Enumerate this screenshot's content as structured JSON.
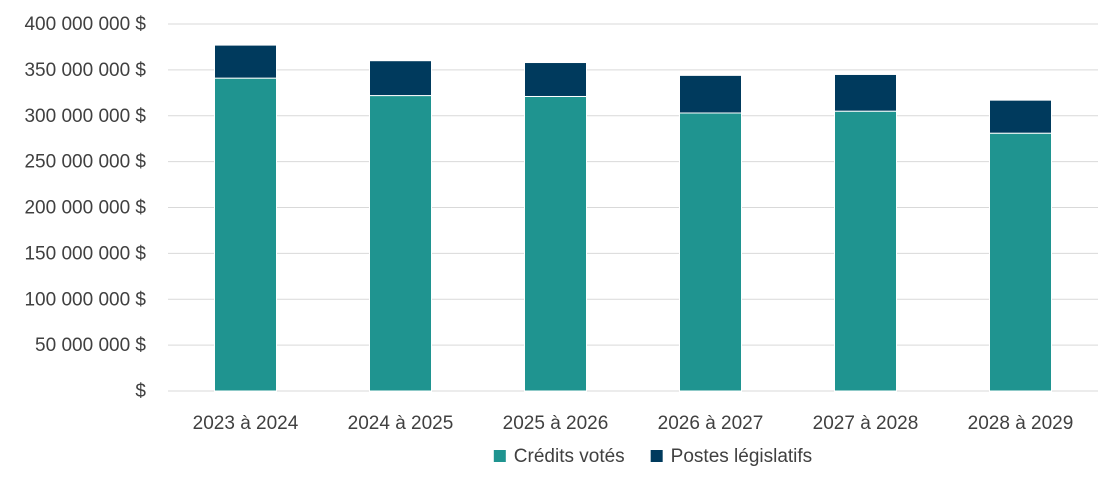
{
  "chart_data": {
    "type": "bar",
    "stacked": true,
    "title": "",
    "xlabel": "",
    "ylabel": "",
    "categories": [
      "2023 à 2024",
      "2024 à 2025",
      "2025 à 2026",
      "2026 à 2027",
      "2027 à 2028",
      "2028 à 2029"
    ],
    "series": [
      {
        "name": "Crédits votés",
        "color": "#1f9490",
        "values": [
          341000000,
          322000000,
          321000000,
          303000000,
          305000000,
          281000000
        ]
      },
      {
        "name": "Postes législatifs",
        "color": "#003a5d",
        "values": [
          36000000,
          38000000,
          37000000,
          41000000,
          40000000,
          36000000
        ]
      }
    ],
    "ylim": [
      0,
      400000000
    ],
    "yticks": [
      0,
      50000000,
      100000000,
      150000000,
      200000000,
      250000000,
      300000000,
      350000000,
      400000000
    ],
    "ytick_labels": [
      "$",
      "50 000 000 $",
      "100 000 000 $",
      "150 000 000 $",
      "200 000 000 $",
      "250 000 000 $",
      "300 000 000 $",
      "350 000 000 $",
      "400 000 000 $"
    ],
    "grid": true,
    "legend_position": "bottom",
    "colors": {
      "grid": "#d9d9d9",
      "text": "#404040"
    }
  }
}
